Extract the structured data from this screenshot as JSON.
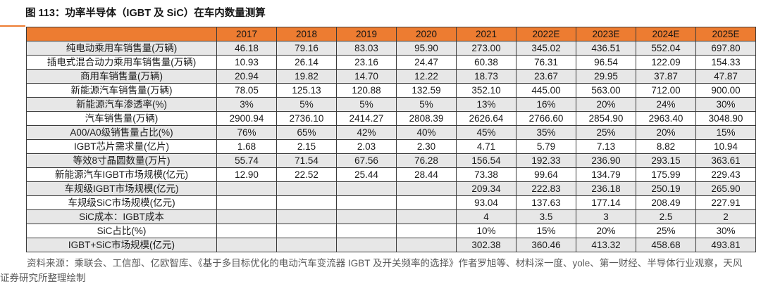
{
  "figure": {
    "title": "图 113：功率半导体（IGBT 及 SiC）在车内数量测算",
    "source_note": "资料来源：乘联会、工信部、亿欧智库、《基于多目标优化的电动汽车变流器 IGBT 及开关频率的选择》作者罗旭等、材料深一度、yole、第一财经、半导体行业观察，天风证券研究所整理绘制"
  },
  "colors": {
    "accent_orange": "#ED7C31",
    "row_alt_gray": "#E7E7E7",
    "table_border": "#3b3b3b",
    "source_text_gray": "#595959"
  },
  "chart_data": {
    "type": "table",
    "columns": [
      "",
      "2017",
      "2018",
      "2019",
      "2020",
      "2021",
      "2022E",
      "2023E",
      "2024E",
      "2025E"
    ],
    "rows": [
      {
        "label": "纯电动乘用车销售量(万辆)",
        "values": [
          "46.18",
          "79.16",
          "83.03",
          "95.90",
          "273.00",
          "345.02",
          "436.51",
          "552.04",
          "697.80"
        ]
      },
      {
        "label": "插电式混合动力乘用车销售量(万辆)",
        "values": [
          "10.93",
          "26.14",
          "23.16",
          "24.47",
          "60.38",
          "76.31",
          "96.54",
          "122.09",
          "154.33"
        ]
      },
      {
        "label": "商用车销售量(万辆)",
        "values": [
          "20.94",
          "19.82",
          "14.70",
          "12.22",
          "18.73",
          "23.67",
          "29.95",
          "37.87",
          "47.87"
        ]
      },
      {
        "label": "新能源汽车销售量(万辆)",
        "values": [
          "78.05",
          "125.13",
          "120.88",
          "132.59",
          "352.10",
          "445.00",
          "563.00",
          "712.00",
          "900.00"
        ]
      },
      {
        "label": "新能源汽车渗透率(%)",
        "values": [
          "3%",
          "5%",
          "5%",
          "5%",
          "13%",
          "16%",
          "20%",
          "24%",
          "30%"
        ]
      },
      {
        "label": "汽车销售量(万辆)",
        "values": [
          "2900.94",
          "2736.10",
          "2414.27",
          "2808.39",
          "2626.64",
          "2766.60",
          "2854.90",
          "2963.40",
          "3048.90"
        ]
      },
      {
        "label": "A00/A0级销售量占比(%)",
        "values": [
          "76%",
          "65%",
          "42%",
          "40%",
          "45%",
          "35%",
          "25%",
          "20%",
          "15%"
        ]
      },
      {
        "label": "IGBT芯片需求量(亿片)",
        "values": [
          "1.68",
          "2.15",
          "2.03",
          "2.30",
          "4.71",
          "5.79",
          "7.13",
          "8.82",
          "10.94"
        ]
      },
      {
        "label": "等效8寸晶圆数量(万片)",
        "values": [
          "55.74",
          "71.54",
          "67.56",
          "76.28",
          "156.54",
          "192.33",
          "236.90",
          "293.15",
          "363.61"
        ]
      },
      {
        "label": "新能源汽车IGBT市场规模(亿元)",
        "values": [
          "12.90",
          "22.52",
          "25.44",
          "28.44",
          "73.38",
          "99.64",
          "134.79",
          "175.99",
          "229.43"
        ]
      },
      {
        "label": "车规级IGBT市场规模(亿元)",
        "values": [
          "",
          "",
          "",
          "",
          "209.34",
          "222.83",
          "236.18",
          "250.19",
          "265.90"
        ]
      },
      {
        "label": "车规级SiC市场规模(亿元)",
        "values": [
          "",
          "",
          "",
          "",
          "93.04",
          "137.63",
          "177.14",
          "208.49",
          "227.91"
        ]
      },
      {
        "label": "SiC成本：IGBT成本",
        "values": [
          "",
          "",
          "",
          "",
          "4",
          "3.5",
          "3",
          "2.5",
          "2"
        ]
      },
      {
        "label": "SiC占比(%)",
        "values": [
          "",
          "",
          "",
          "",
          "10%",
          "15%",
          "20%",
          "25%",
          "30%"
        ]
      },
      {
        "label": "IGBT+SiC市场规模(亿元)",
        "values": [
          "",
          "",
          "",
          "",
          "302.38",
          "360.46",
          "413.32",
          "458.68",
          "493.81"
        ]
      }
    ]
  }
}
